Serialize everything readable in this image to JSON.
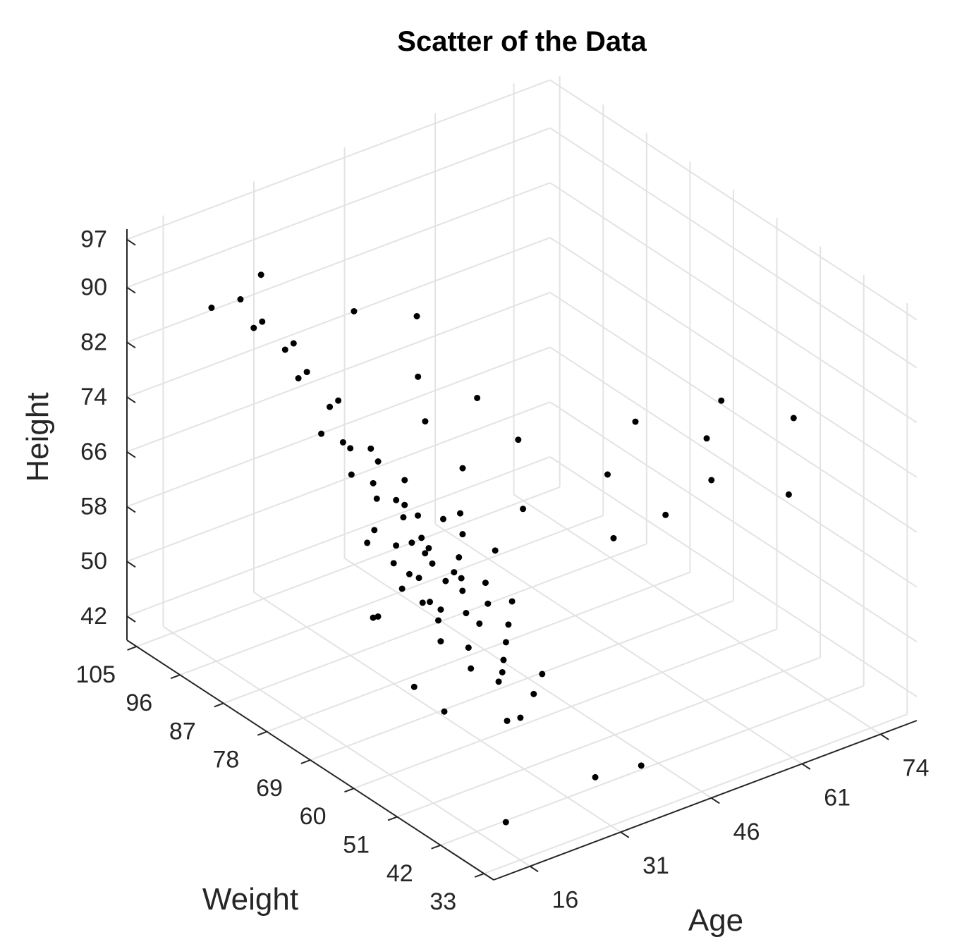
{
  "chart_data": {
    "type": "scatter3d",
    "title": "Scatter of the Data",
    "xlabel": "Weight",
    "ylabel": "Age",
    "zlabel": "Height",
    "color": "#000000",
    "grid": true,
    "xlim": [
      31,
      107
    ],
    "ylim": [
      10,
      80
    ],
    "zlim": [
      38.5,
      98.5
    ],
    "xticks": [
      33,
      42,
      51,
      60,
      69,
      78,
      87,
      96,
      105
    ],
    "yticks": [
      16,
      31,
      46,
      61,
      74
    ],
    "zticks": [
      42,
      50,
      58,
      66,
      74,
      82,
      90,
      97
    ],
    "x": [
      45,
      47,
      48,
      50,
      51,
      52,
      53,
      54,
      55,
      55,
      56,
      57,
      57,
      58,
      58,
      59,
      60,
      60,
      61,
      61,
      62,
      62,
      63,
      63,
      64,
      64,
      65,
      66,
      66,
      67,
      67,
      68,
      69,
      70,
      71,
      72,
      73,
      74,
      75,
      76,
      77,
      78,
      80,
      82,
      84,
      86,
      88,
      90,
      92,
      94,
      96,
      102,
      98,
      44,
      46,
      43,
      42,
      41,
      49,
      53,
      56,
      59,
      62,
      65,
      68,
      70,
      74,
      78,
      82,
      85,
      72,
      66,
      60,
      50,
      55,
      48,
      58,
      46,
      64,
      40,
      52,
      44,
      38,
      35,
      60,
      66,
      70,
      76,
      54,
      50
    ],
    "y": [
      22,
      19,
      25,
      21,
      28,
      18,
      23,
      26,
      20,
      24,
      29,
      19,
      22,
      25,
      21,
      27,
      18,
      23,
      26,
      20,
      24,
      29,
      19,
      22,
      25,
      28,
      21,
      23,
      26,
      19,
      24,
      27,
      21,
      25,
      22,
      28,
      20,
      24,
      26,
      21,
      23,
      19,
      22,
      25,
      20,
      23,
      21,
      24,
      19,
      22,
      20,
      20,
      25,
      27,
      30,
      24,
      21,
      20,
      26,
      30,
      33,
      31,
      35,
      32,
      34,
      36,
      33,
      35,
      38,
      30,
      40,
      42,
      38,
      45,
      48,
      52,
      55,
      58,
      74,
      66,
      62,
      70,
      40,
      30,
      20,
      18,
      22,
      25,
      16,
      17
    ],
    "z": [
      57,
      59,
      56,
      60,
      58,
      61,
      63,
      60,
      62,
      65,
      61,
      64,
      62,
      66,
      63,
      64,
      65,
      67,
      63,
      66,
      68,
      65,
      67,
      69,
      66,
      70,
      68,
      71,
      67,
      70,
      72,
      69,
      73,
      71,
      74,
      72,
      75,
      77,
      74,
      78,
      76,
      79,
      81,
      80,
      84,
      83,
      86,
      85,
      88,
      87,
      90,
      86,
      91,
      54,
      55,
      52,
      53,
      39,
      57,
      59,
      60,
      62,
      64,
      66,
      67,
      72,
      78,
      82,
      88,
      90,
      80,
      76,
      70,
      68,
      74,
      70,
      78,
      74,
      72,
      72,
      76,
      80,
      42,
      45,
      50,
      58,
      55,
      62,
      70,
      52
    ]
  }
}
